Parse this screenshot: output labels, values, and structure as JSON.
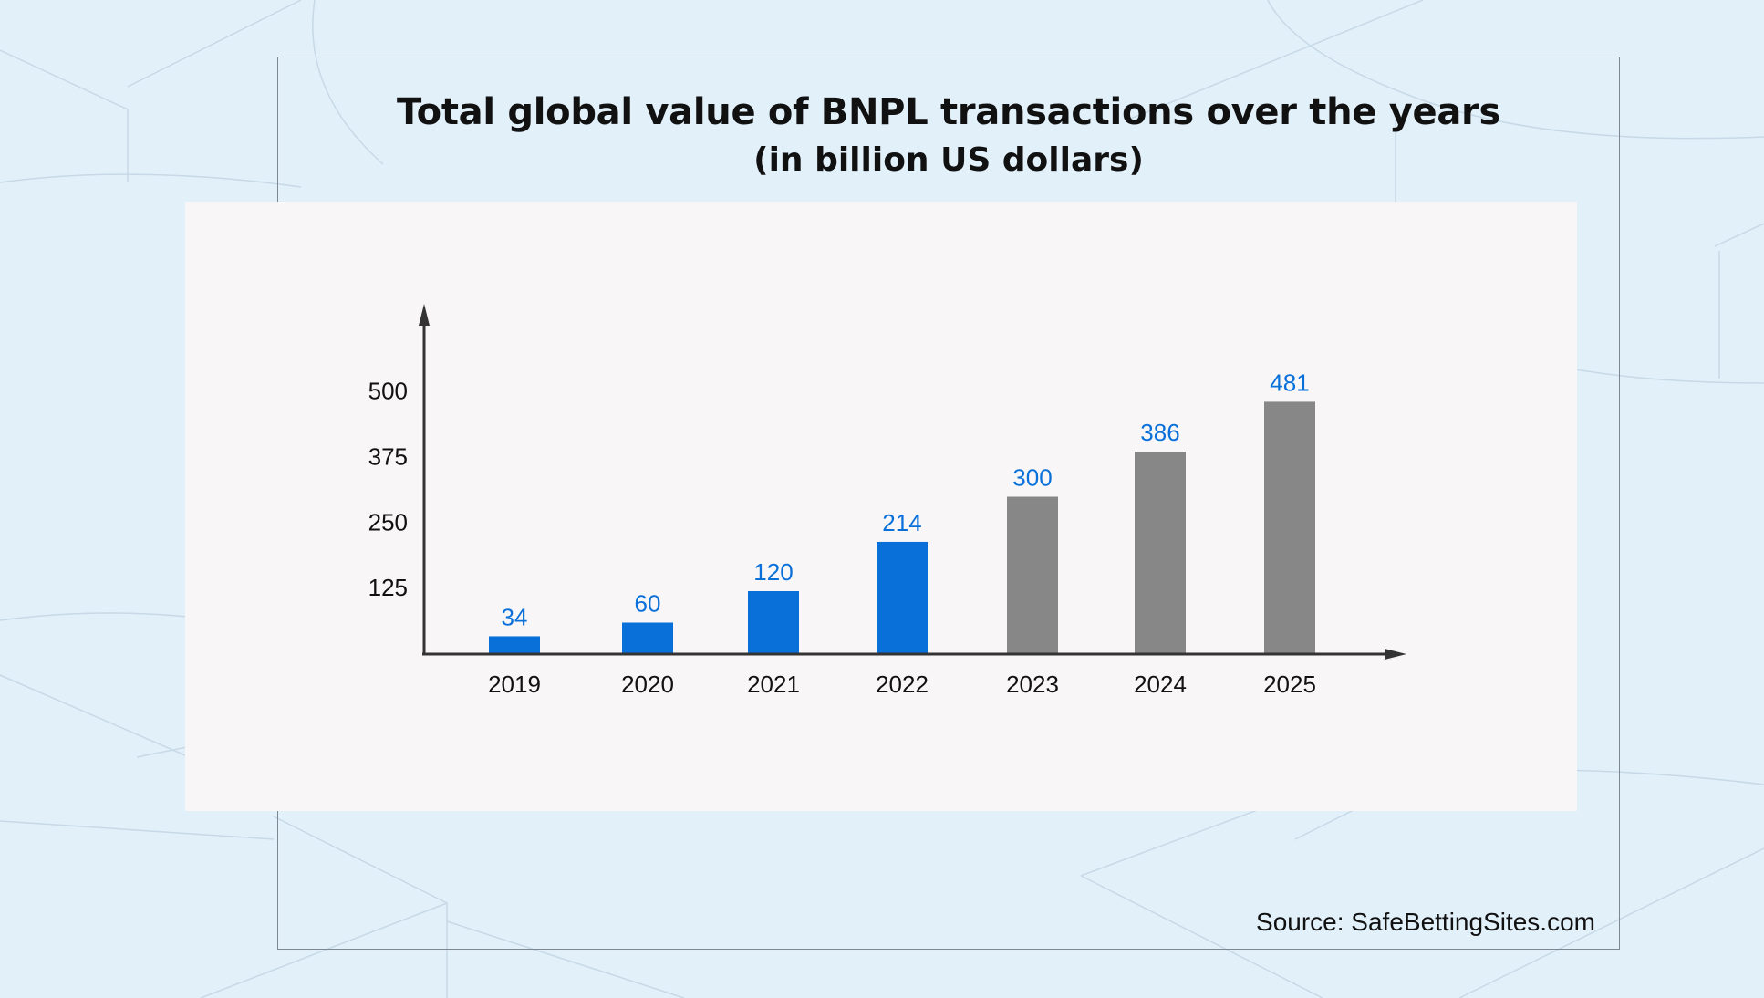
{
  "title": "Total global value of BNPL transactions over the years",
  "subtitle": "(in billion US dollars)",
  "source": "Source: SafeBettingSites.com",
  "colors": {
    "background": "#e2f0fa",
    "panel": "#f8f6f7",
    "actual": "#0a70d9",
    "forecast": "#878787",
    "axis": "#333333",
    "value_label_actual": "#0a70d9",
    "value_label_forecast": "#0a70d9"
  },
  "chart_data": {
    "type": "bar",
    "categories": [
      "2019",
      "2020",
      "2021",
      "2022",
      "2023",
      "2024",
      "2025"
    ],
    "values": [
      34,
      60,
      120,
      214,
      300,
      386,
      481
    ],
    "value_labels": [
      "34",
      "60",
      "120",
      "214",
      "300",
      "386",
      "481"
    ],
    "bar_colors": [
      "#0a70d9",
      "#0a70d9",
      "#0a70d9",
      "#0a70d9",
      "#878787",
      "#878787",
      "#878787"
    ],
    "y_ticks": [
      125,
      250,
      375,
      500
    ],
    "y_tick_labels": [
      "125",
      "250",
      "375",
      "500"
    ],
    "ylim": [
      0,
      500
    ],
    "title": "Total global value of BNPL transactions over the years",
    "subtitle": "(in billion US dollars)",
    "xlabel": "",
    "ylabel": "",
    "grid": false
  }
}
